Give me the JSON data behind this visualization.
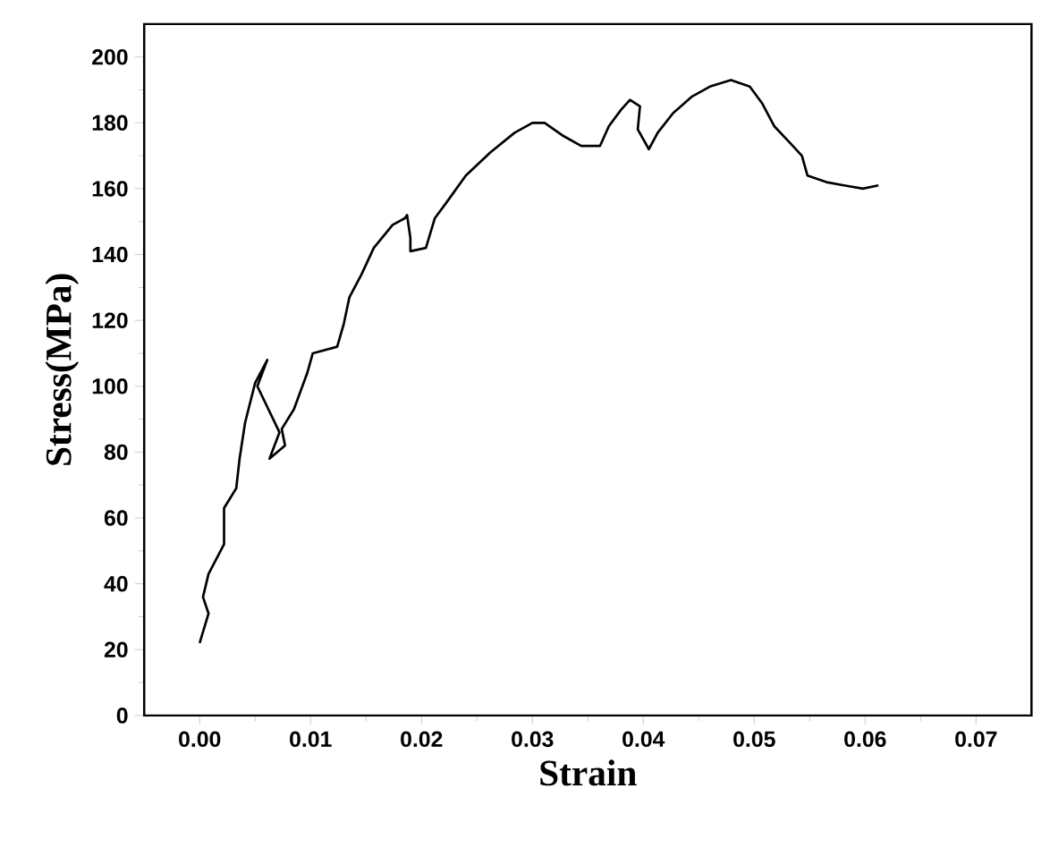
{
  "chart_data": {
    "type": "line",
    "xlabel": "Strain",
    "ylabel": "Stress(MPa)",
    "xlim": [
      -0.005,
      0.075
    ],
    "ylim": [
      0,
      210
    ],
    "xticks": [
      {
        "value": 0,
        "label": "0.00"
      },
      {
        "value": 0.01,
        "label": "0.01"
      },
      {
        "value": 0.02,
        "label": "0.02"
      },
      {
        "value": 0.03,
        "label": "0.03"
      },
      {
        "value": 0.04,
        "label": "0.04"
      },
      {
        "value": 0.05,
        "label": "0.05"
      },
      {
        "value": 0.06,
        "label": "0.06"
      },
      {
        "value": 0.07,
        "label": "0.07"
      }
    ],
    "yticks": [
      0,
      20,
      40,
      60,
      80,
      100,
      120,
      140,
      160,
      180,
      200
    ],
    "marker": "none",
    "line_style": "solid",
    "series": [
      {
        "color": "#000000",
        "x": [
          0.0,
          0.0008,
          0.0003,
          0.0008,
          0.0022,
          0.0022,
          0.0033,
          0.0036,
          0.0041,
          0.0047,
          0.005,
          0.0061,
          0.0052,
          0.0072,
          0.0063,
          0.0077,
          0.0074,
          0.0085,
          0.0097,
          0.0102,
          0.0124,
          0.013,
          0.0135,
          0.0146,
          0.0157,
          0.0174,
          0.0185,
          0.0187,
          0.019,
          0.019,
          0.0204,
          0.0212,
          0.0223,
          0.024,
          0.0262,
          0.0284,
          0.03,
          0.0311,
          0.0328,
          0.0344,
          0.0361,
          0.0369,
          0.038,
          0.0388,
          0.0397,
          0.0395,
          0.0405,
          0.0413,
          0.0427,
          0.0444,
          0.046,
          0.0479,
          0.0496,
          0.0507,
          0.0518,
          0.0532,
          0.0543,
          0.0548,
          0.0565,
          0.0581,
          0.0598,
          0.0612
        ],
        "values": [
          22,
          31,
          36,
          43,
          52,
          63,
          69,
          78,
          89,
          97,
          101,
          108,
          100,
          86,
          78,
          82,
          87,
          93,
          104,
          110,
          112,
          119,
          127,
          134,
          142,
          149,
          151,
          152,
          145,
          141,
          142,
          151,
          156,
          164,
          171,
          177,
          180,
          180,
          176,
          173,
          173,
          179,
          184,
          187,
          185,
          178,
          172,
          177,
          183,
          188,
          191,
          193,
          191,
          186,
          179,
          174,
          170,
          164,
          162,
          161,
          160,
          161
        ]
      }
    ]
  }
}
